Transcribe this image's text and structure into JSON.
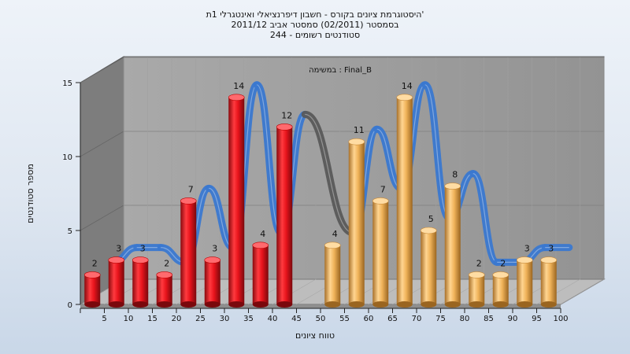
{
  "chart_data": {
    "type": "bar",
    "title_lines": [
      "היסטוגרמת ציונים בקורס - חשבון דיפרנציאלי ואינטגרלי 1ת'",
      "בסמסטר  (02/2011)  סמסטר אביב 2011/12",
      "סטודנטים רשומים - 244"
    ],
    "inner_label": "במשימה : Final_B",
    "xlabel": "טווח ציונים",
    "ylabel": "מספר סטודנטים",
    "categories": [
      "5",
      "10",
      "15",
      "20",
      "25",
      "30",
      "35",
      "40",
      "45",
      "50",
      "55",
      "60",
      "65",
      "70",
      "75",
      "80",
      "85",
      "90",
      "95",
      "100"
    ],
    "values": [
      2,
      3,
      3,
      2,
      7,
      3,
      14,
      4,
      12,
      null,
      4,
      11,
      7,
      14,
      5,
      8,
      2,
      2,
      3,
      3
    ],
    "value_labels": [
      "2",
      "3",
      "3",
      "2",
      "7",
      "3",
      "14",
      "4",
      "12",
      "",
      "4",
      "11",
      "7",
      "14",
      "5",
      "8",
      "2",
      "2",
      "3",
      "3"
    ],
    "ylim": [
      0,
      15
    ],
    "yticks": [
      "0",
      "5",
      "10",
      "15"
    ],
    "colors": {
      "fail_bar": "#e8141c",
      "pass_bar": "#f0b35a",
      "ribbon": "#3a78d0",
      "ribbon_dark": "#5a5a5a",
      "wall": "#9c9c9c",
      "floor": "#bdbdbd",
      "side_wall": "#7d7d7d"
    },
    "grid": true
  }
}
